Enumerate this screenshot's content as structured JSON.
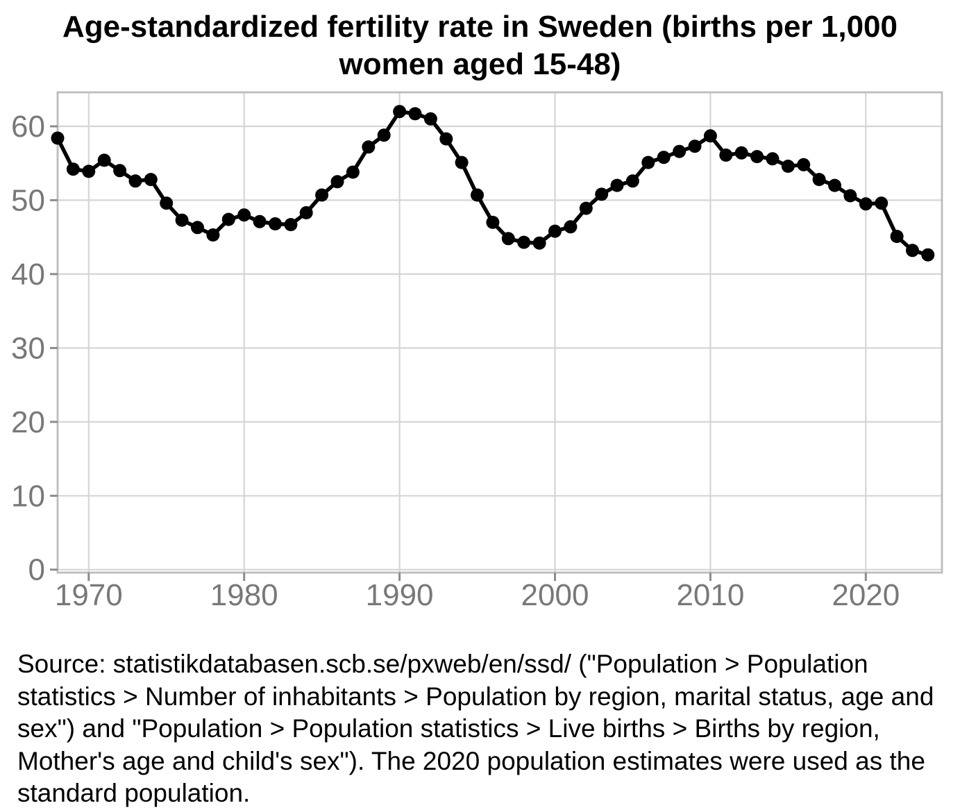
{
  "title": "Age-standardized fertility rate in Sweden (births per 1,000 women aged 15-48)",
  "source_note": "Source: statistikdatabasen.scb.se/pxweb/en/ssd/ (\"Population > Population statistics > Number of inhabitants > Population by region, marital status, age and sex\") and \"Population > Population statistics > Live births > Births by region, Mother's age and child's sex\"). The 2020 population estimates were used as the standard population.",
  "chart_data": {
    "type": "line",
    "title": "Age-standardized fertility rate in Sweden (births per 1,000 women aged 15-48)",
    "xlabel": "",
    "ylabel": "",
    "legend": false,
    "grid": true,
    "x_ticks": [
      1970,
      1980,
      1990,
      2000,
      2010,
      2020
    ],
    "y_ticks": [
      0,
      10,
      20,
      30,
      40,
      50,
      60
    ],
    "xlim": [
      1968.0,
      2024.9
    ],
    "ylim": [
      -0.4,
      64.6
    ],
    "x": [
      1968,
      1969,
      1970,
      1971,
      1972,
      1973,
      1974,
      1975,
      1976,
      1977,
      1978,
      1979,
      1980,
      1981,
      1982,
      1983,
      1984,
      1985,
      1986,
      1987,
      1988,
      1989,
      1990,
      1991,
      1992,
      1993,
      1994,
      1995,
      1996,
      1997,
      1998,
      1999,
      2000,
      2001,
      2002,
      2003,
      2004,
      2005,
      2006,
      2007,
      2008,
      2009,
      2010,
      2011,
      2012,
      2013,
      2014,
      2015,
      2016,
      2017,
      2018,
      2019,
      2020,
      2021,
      2022,
      2023,
      2024
    ],
    "series": [
      {
        "name": "Age-standardized fertility rate (births per 1,000 women aged 15-48)",
        "values": [
          58.4,
          54.2,
          53.9,
          55.4,
          54.0,
          52.6,
          52.8,
          49.6,
          47.3,
          46.3,
          45.3,
          47.4,
          48.0,
          47.1,
          46.8,
          46.7,
          48.3,
          50.7,
          52.5,
          53.8,
          57.2,
          58.8,
          62.0,
          61.7,
          61.0,
          58.3,
          55.1,
          50.7,
          47.0,
          44.8,
          44.3,
          44.2,
          45.8,
          46.4,
          48.9,
          50.8,
          52.0,
          52.6,
          55.1,
          55.8,
          56.6,
          57.3,
          58.7,
          56.1,
          56.4,
          55.9,
          55.6,
          54.6,
          54.8,
          52.8,
          52.0,
          50.6,
          49.5,
          49.6,
          45.1,
          43.2,
          42.6
        ]
      }
    ],
    "colors": {
      "line": "#000000",
      "point": "#000000",
      "grid": "#d5d5d5",
      "panel_border": "#bdbdbd",
      "tick_mark": "#8c8c8c",
      "tick_label": "#787878",
      "title": "#000000",
      "source": "#000000",
      "background": "#ffffff"
    }
  }
}
